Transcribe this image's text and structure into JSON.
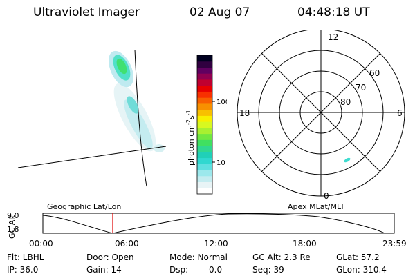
{
  "header": {
    "title": "Ultraviolet Imager",
    "date": "02 Aug 07",
    "time": "04:48:18 UT"
  },
  "colorbar": {
    "label": "photon cm",
    "label_sup1": "-2",
    "label_mid": "s",
    "label_sup2": "-1",
    "ticks": [
      "100",
      "10"
    ],
    "colors": [
      "#ffffff",
      "#e8f4f6",
      "#c4ecf0",
      "#9ce8ec",
      "#5ee0e0",
      "#30d8d0",
      "#20d0b8",
      "#30d890",
      "#40e060",
      "#70e840",
      "#a8f030",
      "#d8f820",
      "#f8f000",
      "#f8c000",
      "#f89000",
      "#f86000",
      "#f83000",
      "#e80000",
      "#c00030",
      "#900050",
      "#600060",
      "#300040",
      "#000020"
    ]
  },
  "polar": {
    "labels_mlt": [
      "12",
      "6",
      "0",
      "18"
    ],
    "labels_lat": [
      "60",
      "70",
      "80"
    ]
  },
  "timeline": {
    "ylabel": "GC Alt",
    "left_title": "Geographic Lat/Lon",
    "right_title": "Apex MLat/MLT",
    "y_top": "9.0",
    "y_bottom": "1.8",
    "ticks": [
      "00:00",
      "06:00",
      "12:00",
      "18:00",
      "23:59"
    ],
    "marker_color": "#e00000"
  },
  "info": {
    "flt": "Flt: LBHL",
    "door": "Door: Open",
    "mode": "Mode: Normal",
    "gcalt": "GC Alt: 2.3 Re",
    "glat": "GLat: 57.2",
    "ip": "IP: 36.0",
    "gain": "Gain: 14",
    "dsp_label": "Dsp:",
    "dsp_value": "0.0",
    "seq": "Seq: 39",
    "glon": "GLon: 310.4"
  }
}
